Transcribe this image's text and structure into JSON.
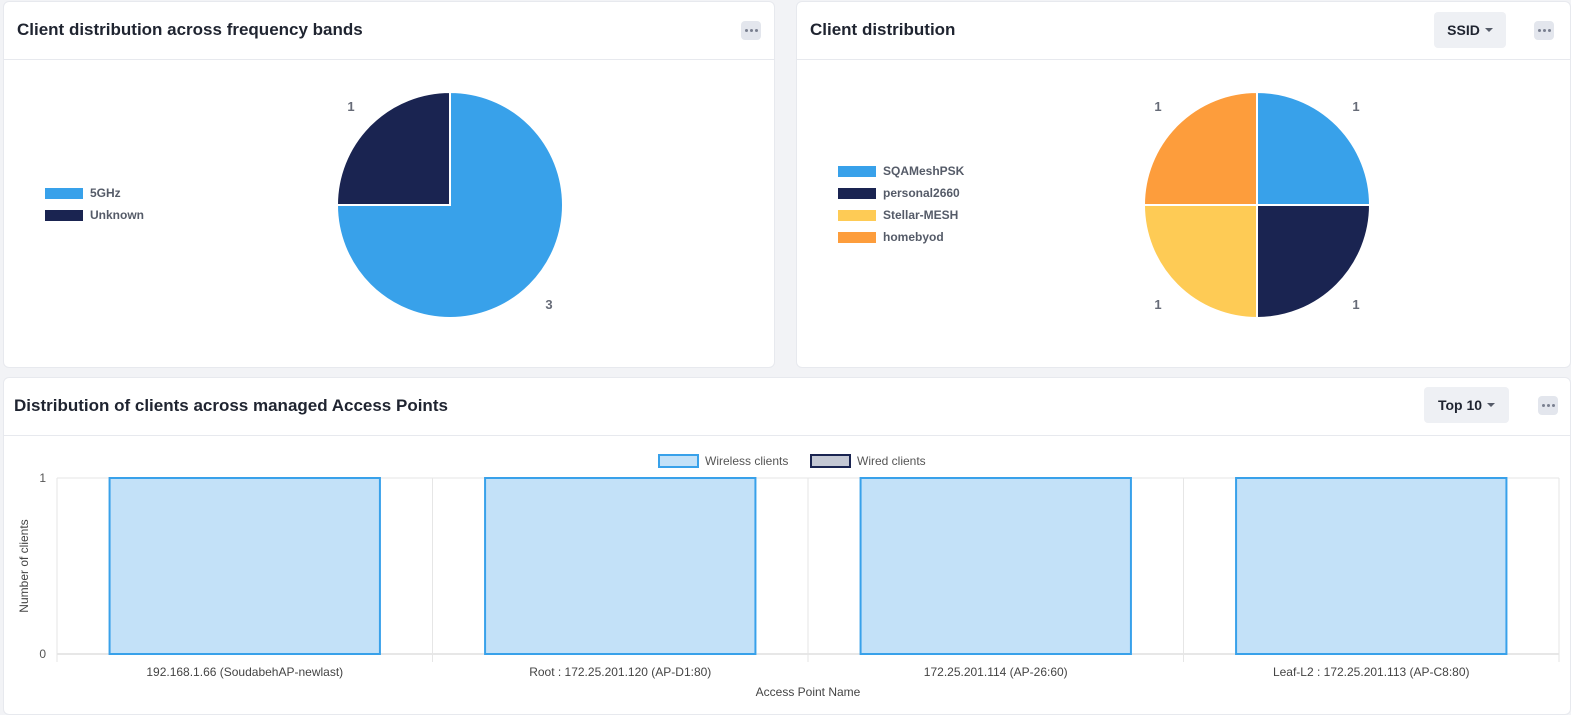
{
  "colors": {
    "blue": "#38a1ea",
    "navy": "#1a2451",
    "yellow": "#fecb55",
    "orange": "#fd9d3c",
    "bar_fill": "#c3e1f8",
    "bar_stroke": "#38a1ea",
    "wired_fill": "#c4c8d4",
    "wired_stroke": "#1a2451"
  },
  "freq_card": {
    "title": "Client distribution across frequency bands",
    "more_icon": "ellipsis-icon"
  },
  "ssid_card": {
    "title": "Client distribution",
    "dropdown_label": "SSID",
    "more_icon": "ellipsis-icon"
  },
  "ap_card": {
    "title": "Distribution of clients across managed Access Points",
    "dropdown_label": "Top 10",
    "more_icon": "ellipsis-icon"
  },
  "chart_data": [
    {
      "type": "pie",
      "legend_position": "left",
      "categories": [
        "5GHz",
        "Unknown"
      ],
      "values": [
        3,
        1
      ],
      "data_labels": [
        "3",
        "1"
      ]
    },
    {
      "type": "pie",
      "legend_position": "left",
      "categories": [
        "SQAMeshPSK",
        "personal2660",
        "Stellar-MESH",
        "homebyod"
      ],
      "values": [
        1,
        1,
        1,
        1
      ],
      "data_labels": [
        "1",
        "1",
        "1",
        "1"
      ]
    },
    {
      "type": "bar",
      "legend_position": "top",
      "grid": true,
      "categories": [
        "192.168.1.66 (SoudabehAP-newlast)",
        "Root : 172.25.201.120 (AP-D1:80)",
        "172.25.201.114 (AP-26:60)",
        "Leaf-L2 : 172.25.201.113 (AP-C8:80)"
      ],
      "series": [
        {
          "name": "Wireless clients",
          "values": [
            1,
            1,
            1,
            1
          ]
        },
        {
          "name": "Wired clients",
          "values": [
            0,
            0,
            0,
            0
          ]
        }
      ],
      "xlabel": "Access Point Name",
      "ylabel": "Number of clients",
      "ylim": [
        0,
        1
      ],
      "yticks": [
        "0",
        "1"
      ]
    }
  ]
}
